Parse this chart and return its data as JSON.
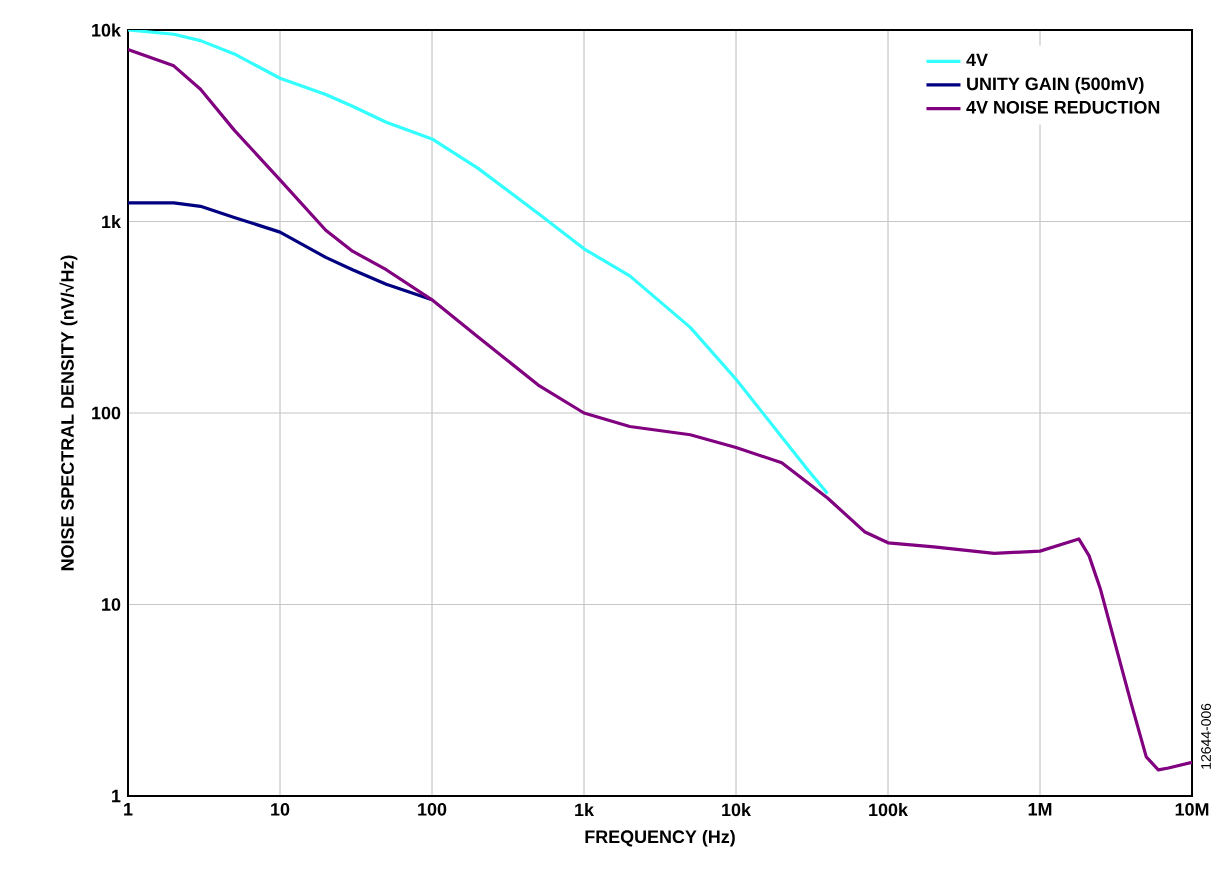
{
  "chart_data": {
    "type": "line",
    "xlabel": "FREQUENCY (Hz)",
    "ylabel": "NOISE SPECTRAL DENSITY (nV/√Hz)",
    "log": "xy",
    "grid": true,
    "legend": "top right",
    "line_style": "solid",
    "marker": "none",
    "xlim": [
      1,
      10000000
    ],
    "ylim": [
      1,
      10000
    ],
    "xticks": [
      1,
      10,
      100,
      {
        "value": 1000,
        "label": "1k"
      },
      {
        "value": 10000,
        "label": "10k"
      },
      {
        "value": 100000,
        "label": "100k"
      },
      {
        "value": 1000000,
        "label": "1M"
      },
      {
        "value": 10000000,
        "label": "10M"
      }
    ],
    "yticks": [
      1,
      10,
      100,
      {
        "value": 1000,
        "label": "1k"
      },
      {
        "value": 10000,
        "label": "10k"
      }
    ],
    "annotations": [
      "12644-006"
    ],
    "series": [
      {
        "name": "4V",
        "color": "#33ffff",
        "x": [
          1,
          2,
          3,
          5,
          10,
          20,
          30,
          50,
          100,
          200,
          500,
          1000,
          2000,
          5000,
          10000,
          20000,
          30000,
          40000
        ],
        "values": [
          10000,
          9500,
          8800,
          7500,
          5600,
          4600,
          4000,
          3300,
          2700,
          1900,
          1100,
          720,
          520,
          280,
          150,
          75,
          50,
          38
        ]
      },
      {
        "name": "UNITY GAIN (500mV)",
        "color": "#000080",
        "x": [
          1,
          2,
          3,
          5,
          10,
          20,
          30,
          50,
          70,
          100
        ],
        "values": [
          1250,
          1250,
          1200,
          1050,
          880,
          650,
          560,
          470,
          430,
          390
        ]
      },
      {
        "name": "4V NOISE REDUCTION",
        "color": "#800080",
        "x": [
          1,
          2,
          3,
          5,
          10,
          20,
          30,
          50,
          100,
          200,
          500,
          1000,
          2000,
          5000,
          10000,
          20000,
          40000,
          70000,
          100000,
          200000,
          500000,
          1000000,
          1500000,
          1800000,
          2100000,
          2500000,
          3000000,
          4000000,
          5000000,
          6000000,
          7000000,
          10000000
        ],
        "values": [
          7900,
          6500,
          4900,
          3000,
          1650,
          900,
          700,
          560,
          390,
          250,
          140,
          100,
          85,
          77,
          66,
          55,
          36,
          24,
          21,
          20,
          18.5,
          19,
          21,
          22,
          18,
          12,
          7,
          3,
          1.6,
          1.37,
          1.4,
          1.5
        ]
      }
    ]
  }
}
